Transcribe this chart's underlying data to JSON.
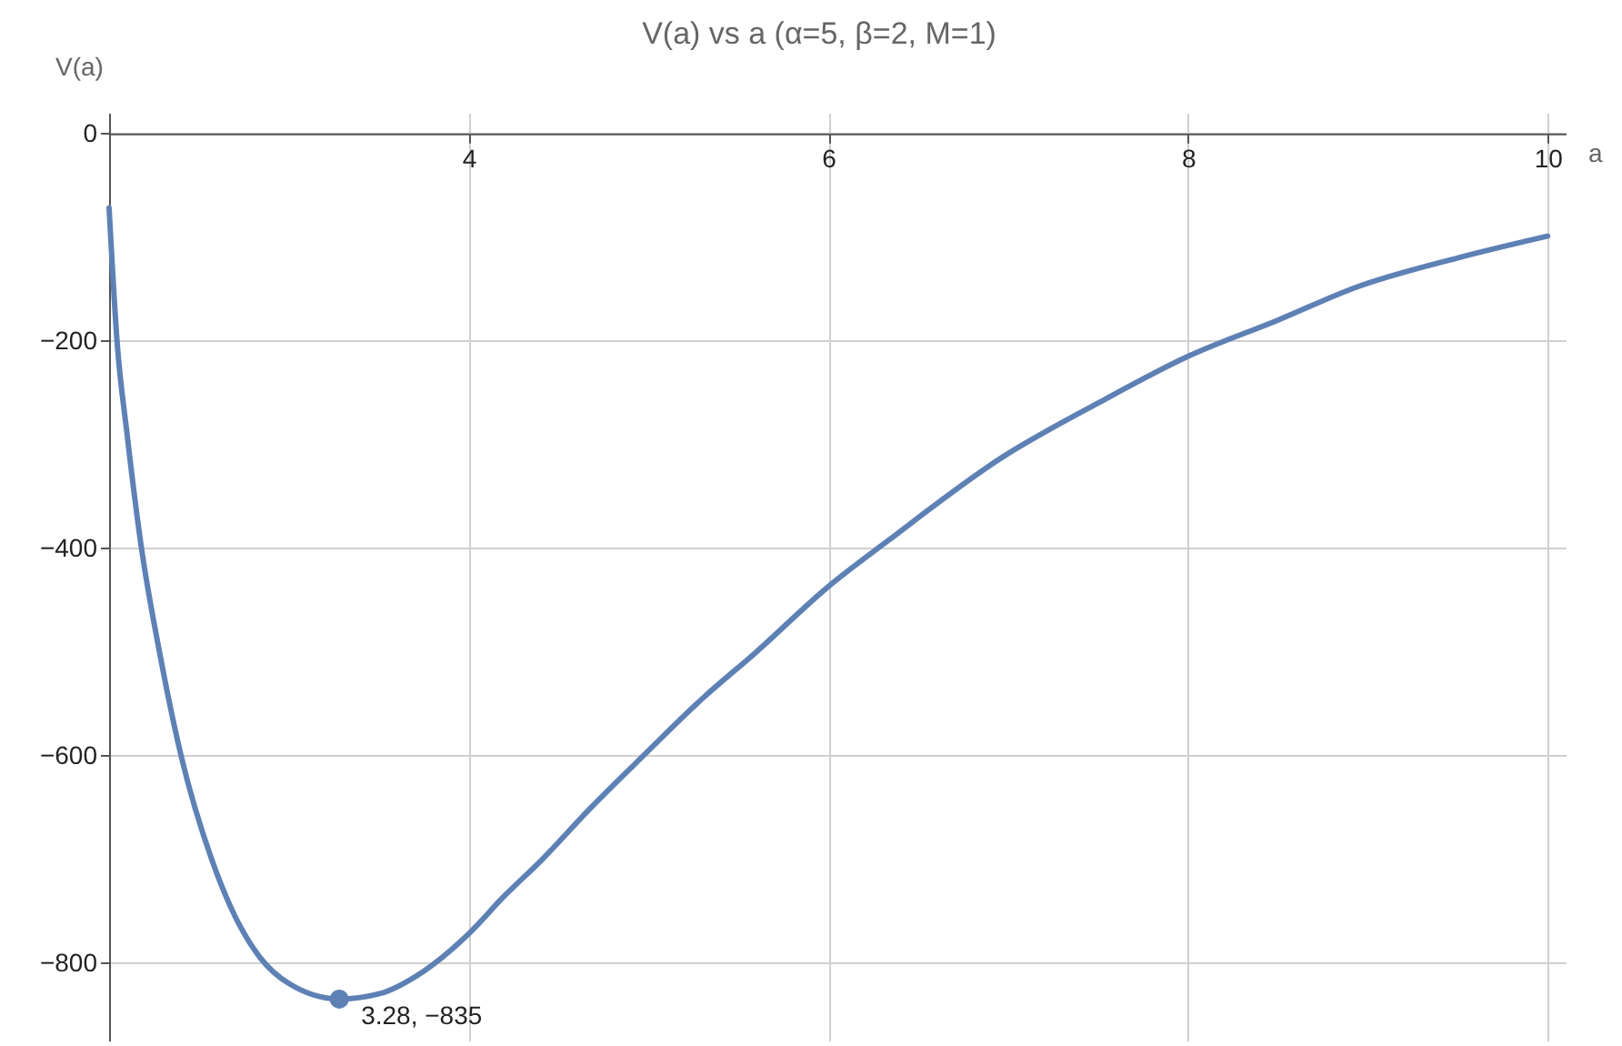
{
  "chart_data": {
    "type": "line",
    "title": "V(a) vs a (α=5, β=2, M=1)",
    "xlabel": "a",
    "ylabel": "V(a)",
    "xlim": [
      2,
      10.1
    ],
    "ylim": [
      -875,
      20
    ],
    "xticks": [
      4,
      6,
      8,
      10
    ],
    "yticks": [
      -800,
      -600,
      -400,
      -200,
      0
    ],
    "grid": true,
    "series": [
      {
        "color": "#5e81b5",
        "x": [
          2.0,
          2.044,
          2.1,
          2.18,
          2.28,
          2.4,
          2.57,
          2.7,
          2.84,
          3.0,
          3.28,
          3.5,
          3.75,
          4.0,
          4.19,
          4.41,
          4.67,
          4.99,
          5.3,
          5.6,
          6.0,
          6.33,
          6.97,
          7.5,
          8.0,
          8.5,
          8.94,
          9.5,
          10.0
        ],
        "values": [
          -72,
          -200,
          -290,
          -400,
          -500,
          -600,
          -700,
          -755,
          -795,
          -820,
          -835,
          -830,
          -808,
          -772,
          -737,
          -700,
          -652,
          -597,
          -545,
          -500,
          -437,
          -393,
          -312,
          -260,
          -215,
          -180,
          -148,
          -120,
          -99
        ]
      },
      {
        "type": "scatter",
        "color": "#5e81b5",
        "x": [
          3.28
        ],
        "values": [
          -835
        ]
      }
    ],
    "annotations": [
      {
        "text": "3.28, −835",
        "x": 3.28,
        "y": -835
      }
    ]
  }
}
